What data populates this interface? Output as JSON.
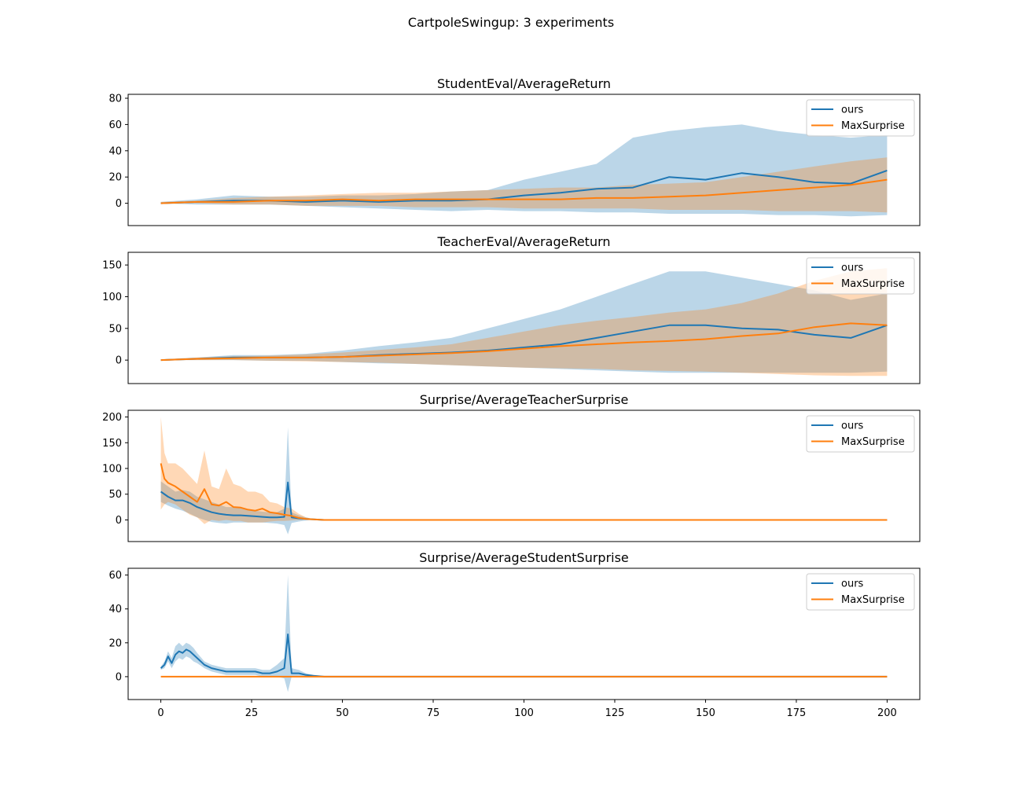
{
  "figure_title": "CartpoleSwingup: 3 experiments",
  "colors": {
    "ours": "#1f77b4",
    "MaxSurprise": "#ff7f0e"
  },
  "chart_data": [
    {
      "type": "line",
      "title": "StudentEval/AverageReturn",
      "x_range": [
        0,
        200
      ],
      "ylim": [
        -17,
        83
      ],
      "yticks": [
        0,
        20,
        40,
        60,
        80
      ],
      "legend": "top-right",
      "series": [
        {
          "name": "ours",
          "x": [
            0,
            10,
            20,
            30,
            40,
            50,
            60,
            70,
            80,
            90,
            100,
            110,
            120,
            130,
            140,
            150,
            160,
            170,
            180,
            190,
            200
          ],
          "mean": [
            0,
            1,
            2,
            2,
            1,
            2,
            1,
            2,
            2,
            3,
            6,
            8,
            11,
            12,
            20,
            18,
            23,
            20,
            16,
            15,
            25
          ],
          "lower": [
            0,
            -1,
            -1,
            -1,
            -2,
            -3,
            -4,
            -5,
            -6,
            -5,
            -6,
            -6,
            -7,
            -7,
            -8,
            -8,
            -8,
            -9,
            -9,
            -10,
            -9
          ],
          "upper": [
            1,
            3,
            6,
            5,
            5,
            6,
            6,
            7,
            9,
            10,
            18,
            24,
            30,
            50,
            55,
            58,
            60,
            55,
            52,
            50,
            52
          ]
        },
        {
          "name": "MaxSurprise",
          "x": [
            0,
            10,
            20,
            30,
            40,
            50,
            60,
            70,
            80,
            90,
            100,
            110,
            120,
            130,
            140,
            150,
            160,
            170,
            180,
            190,
            200
          ],
          "mean": [
            0,
            1,
            1,
            2,
            2,
            3,
            2,
            3,
            3,
            3,
            3,
            3,
            4,
            4,
            5,
            6,
            8,
            10,
            12,
            14,
            18
          ],
          "lower": [
            0,
            0,
            -1,
            -1,
            -2,
            -2,
            -2,
            -3,
            -3,
            -3,
            -4,
            -4,
            -4,
            -4,
            -5,
            -5,
            -5,
            -6,
            -6,
            -6,
            -7
          ],
          "upper": [
            1,
            2,
            4,
            5,
            6,
            7,
            8,
            8,
            9,
            10,
            11,
            12,
            12,
            14,
            15,
            16,
            20,
            24,
            28,
            32,
            35
          ]
        }
      ]
    },
    {
      "type": "line",
      "title": "TeacherEval/AverageReturn",
      "x_range": [
        0,
        200
      ],
      "ylim": [
        -37,
        170
      ],
      "yticks": [
        0,
        50,
        100,
        150
      ],
      "legend": "top-right",
      "series": [
        {
          "name": "ours",
          "x": [
            0,
            10,
            20,
            30,
            40,
            50,
            60,
            70,
            80,
            90,
            100,
            110,
            120,
            130,
            140,
            150,
            160,
            170,
            180,
            190,
            200
          ],
          "mean": [
            0,
            2,
            4,
            4,
            4,
            5,
            8,
            10,
            12,
            15,
            20,
            25,
            35,
            45,
            55,
            55,
            50,
            48,
            40,
            35,
            55
          ],
          "lower": [
            0,
            0,
            0,
            -1,
            -1,
            -3,
            -5,
            -6,
            -8,
            -10,
            -12,
            -14,
            -16,
            -18,
            -20,
            -20,
            -20,
            -20,
            -20,
            -20,
            -18
          ],
          "upper": [
            1,
            4,
            8,
            8,
            10,
            15,
            22,
            28,
            35,
            50,
            65,
            80,
            100,
            120,
            140,
            140,
            130,
            120,
            110,
            95,
            105
          ]
        },
        {
          "name": "MaxSurprise",
          "x": [
            0,
            10,
            20,
            30,
            40,
            50,
            60,
            70,
            80,
            90,
            100,
            110,
            120,
            130,
            140,
            150,
            160,
            170,
            180,
            190,
            200
          ],
          "mean": [
            0,
            2,
            3,
            4,
            4,
            5,
            7,
            9,
            11,
            14,
            18,
            22,
            25,
            28,
            30,
            33,
            38,
            42,
            52,
            58,
            55
          ],
          "lower": [
            0,
            0,
            0,
            -1,
            -2,
            -3,
            -4,
            -6,
            -8,
            -10,
            -12,
            -13,
            -14,
            -16,
            -17,
            -18,
            -20,
            -22,
            -24,
            -25,
            -25
          ],
          "upper": [
            1,
            4,
            6,
            7,
            9,
            12,
            16,
            20,
            25,
            35,
            45,
            55,
            62,
            68,
            75,
            80,
            90,
            105,
            125,
            140,
            145
          ]
        }
      ]
    },
    {
      "type": "line",
      "title": "Surprise/AverageTeacherSurprise",
      "x_range": [
        0,
        200
      ],
      "ylim": [
        -42,
        213
      ],
      "yticks": [
        0,
        50,
        100,
        150,
        200
      ],
      "legend": "top-right",
      "series": [
        {
          "name": "ours",
          "x": [
            0,
            2,
            4,
            6,
            8,
            10,
            12,
            14,
            16,
            18,
            20,
            22,
            24,
            26,
            28,
            30,
            32,
            34,
            35,
            36,
            38,
            40,
            42,
            45,
            50,
            100,
            150,
            200
          ],
          "mean": [
            55,
            45,
            38,
            38,
            33,
            25,
            20,
            15,
            12,
            10,
            9,
            9,
            8,
            7,
            6,
            5,
            5,
            6,
            73,
            5,
            3,
            2,
            1,
            0,
            0,
            0,
            0,
            0
          ],
          "lower": [
            35,
            28,
            22,
            18,
            12,
            5,
            0,
            -4,
            -6,
            -7,
            -5,
            -5,
            -5,
            -5,
            -5,
            -6,
            -7,
            -10,
            -28,
            -6,
            -3,
            -1,
            0,
            0,
            0,
            0,
            0,
            0
          ],
          "upper": [
            75,
            65,
            55,
            58,
            55,
            45,
            40,
            35,
            30,
            25,
            25,
            23,
            20,
            18,
            16,
            15,
            15,
            22,
            180,
            15,
            9,
            5,
            2,
            0,
            0,
            0,
            0,
            0
          ]
        },
        {
          "name": "MaxSurprise",
          "x": [
            0,
            1,
            2,
            4,
            6,
            8,
            10,
            12,
            14,
            16,
            18,
            20,
            22,
            24,
            26,
            28,
            30,
            32,
            34,
            36,
            38,
            40,
            42,
            45,
            50,
            100,
            150,
            200
          ],
          "mean": [
            110,
            80,
            72,
            65,
            55,
            45,
            35,
            60,
            30,
            28,
            35,
            25,
            24,
            20,
            18,
            22,
            15,
            13,
            10,
            8,
            4,
            2,
            1,
            0,
            0,
            0,
            0,
            0
          ],
          "lower": [
            20,
            30,
            35,
            30,
            20,
            10,
            5,
            -8,
            0,
            -2,
            0,
            -2,
            -2,
            -5,
            -5,
            -5,
            -3,
            -2,
            -2,
            -1,
            0,
            0,
            0,
            0,
            0,
            0,
            0,
            0
          ],
          "upper": [
            200,
            130,
            110,
            110,
            100,
            85,
            70,
            135,
            65,
            60,
            100,
            70,
            65,
            55,
            55,
            50,
            35,
            32,
            25,
            22,
            12,
            5,
            2,
            0,
            0,
            0,
            0,
            0
          ]
        }
      ]
    },
    {
      "type": "line",
      "title": "Surprise/AverageStudentSurprise",
      "x_range": [
        0,
        200
      ],
      "ylim": [
        -13.5,
        64
      ],
      "yticks": [
        0,
        20,
        40,
        60
      ],
      "legend": "top-right",
      "series": [
        {
          "name": "ours",
          "x": [
            0,
            1,
            2,
            3,
            4,
            5,
            6,
            7,
            8,
            9,
            10,
            12,
            14,
            16,
            18,
            20,
            22,
            24,
            26,
            28,
            30,
            32,
            34,
            35,
            36,
            38,
            40,
            42,
            45,
            50,
            100,
            150,
            200
          ],
          "mean": [
            5,
            7,
            12,
            8,
            13,
            15,
            14,
            16,
            15,
            13,
            11,
            7,
            5,
            4,
            3,
            3,
            3,
            3,
            3,
            2,
            2,
            3,
            5,
            25,
            2,
            2,
            1,
            0.5,
            0,
            0,
            0,
            0,
            0
          ],
          "lower": [
            4,
            5,
            9,
            5,
            9,
            11,
            10,
            12,
            11,
            9,
            8,
            5,
            3,
            2,
            1,
            1,
            1,
            1,
            1,
            0,
            0,
            0,
            -1,
            -9,
            0,
            0,
            0,
            0,
            0,
            0,
            0,
            0,
            0
          ],
          "upper": [
            6,
            9,
            15,
            11,
            18,
            20,
            18,
            20,
            19,
            17,
            14,
            9,
            7,
            6,
            5,
            5,
            5,
            5,
            5,
            4,
            4,
            7,
            11,
            60,
            5,
            4,
            2,
            1,
            0,
            0,
            0,
            0,
            0
          ]
        },
        {
          "name": "MaxSurprise",
          "x": [
            0,
            200
          ],
          "mean": [
            0,
            0
          ],
          "lower": [
            0,
            0
          ],
          "upper": [
            0,
            0
          ]
        }
      ]
    }
  ],
  "xticks": [
    0,
    25,
    50,
    75,
    100,
    125,
    150,
    175,
    200
  ]
}
